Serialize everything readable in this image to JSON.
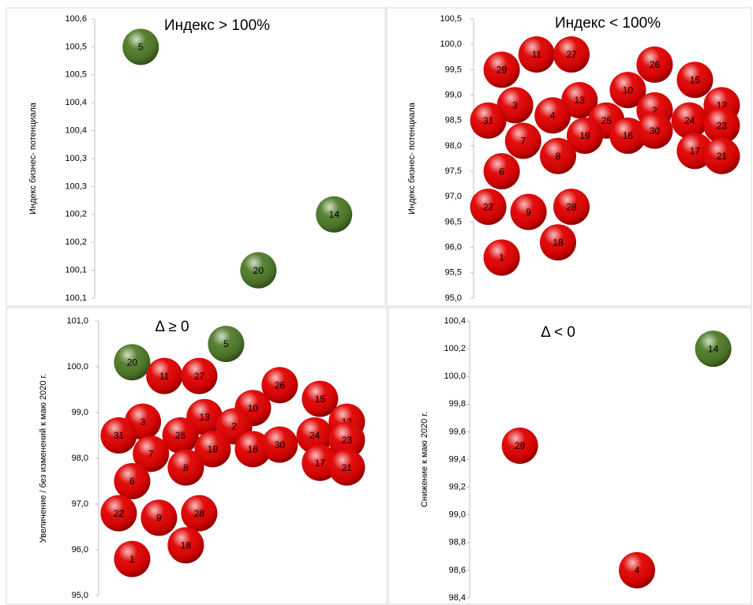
{
  "chart_data": [
    {
      "type": "scatter",
      "title": "Индекс > 100%",
      "y_label": "Индекс бизнес- потенциала",
      "xlim": [
        0,
        100
      ],
      "ylim": [
        100.05,
        100.55
      ],
      "yticks": [
        {
          "value": 100.05,
          "label": "100,1"
        },
        {
          "value": 100.1,
          "label": "100,1"
        },
        {
          "value": 100.15,
          "label": "100,2"
        },
        {
          "value": 100.2,
          "label": "100,2"
        },
        {
          "value": 100.25,
          "label": "100,3"
        },
        {
          "value": 100.3,
          "label": "100,3"
        },
        {
          "value": 100.35,
          "label": "100,4"
        },
        {
          "value": 100.4,
          "label": "100,4"
        },
        {
          "value": 100.45,
          "label": "100,5"
        },
        {
          "value": 100.5,
          "label": "100,5"
        },
        {
          "value": 100.55,
          "label": "100,6"
        }
      ],
      "series": [
        {
          "color": "#4f7a28",
          "labels": [
            "5",
            "20",
            "14"
          ],
          "x": [
            15,
            57,
            84
          ],
          "values": [
            100.5,
            100.1,
            100.2
          ]
        }
      ]
    },
    {
      "type": "scatter",
      "title": "Индекс < 100%",
      "y_label": "Индекс бизнес- потенциала",
      "xlim": [
        0,
        100
      ],
      "ylim": [
        95,
        100.5
      ],
      "yticks": [
        {
          "value": 95,
          "label": "95,0"
        },
        {
          "value": 95.5,
          "label": "95,5"
        },
        {
          "value": 96,
          "label": "96,0"
        },
        {
          "value": 96.5,
          "label": "96,5"
        },
        {
          "value": 97,
          "label": "97,0"
        },
        {
          "value": 97.5,
          "label": "97,5"
        },
        {
          "value": 98,
          "label": "98,0"
        },
        {
          "value": 98.5,
          "label": "98,5"
        },
        {
          "value": 99,
          "label": "99,0"
        },
        {
          "value": 99.5,
          "label": "99,5"
        },
        {
          "value": 100,
          "label": "100,0"
        },
        {
          "value": 100.5,
          "label": "100,5"
        }
      ],
      "series": [
        {
          "color": "#e00000",
          "labels": [
            "29",
            "11",
            "27",
            "26",
            "15",
            "10",
            "3",
            "13",
            "2",
            "12",
            "31",
            "4",
            "25",
            "24",
            "23",
            "19",
            "16",
            "30",
            "7",
            "17",
            "8",
            "21",
            "6",
            "22",
            "9",
            "28",
            "18",
            "1"
          ],
          "x": [
            9,
            22,
            35,
            66,
            81,
            56,
            14,
            38,
            66,
            91,
            4,
            28,
            48,
            79,
            91,
            40,
            56,
            66,
            17,
            81,
            30,
            91,
            9,
            4,
            19,
            35,
            30,
            9
          ],
          "values": [
            99.5,
            99.8,
            99.8,
            99.6,
            99.3,
            99.1,
            98.8,
            98.9,
            98.7,
            98.8,
            98.5,
            98.6,
            98.5,
            98.5,
            98.4,
            98.2,
            98.2,
            98.3,
            98.1,
            97.9,
            97.8,
            97.8,
            97.5,
            96.8,
            96.7,
            96.8,
            96.1,
            95.8
          ]
        }
      ]
    },
    {
      "type": "scatter",
      "title": "Δ ≥ 0",
      "y_label": "Увеличение / без изменений к маю 2020 г.",
      "xlim": [
        0,
        100
      ],
      "ylim": [
        95,
        101
      ],
      "yticks": [
        {
          "value": 95,
          "label": "95,0"
        },
        {
          "value": 96,
          "label": "96,0"
        },
        {
          "value": 97,
          "label": "97,0"
        },
        {
          "value": 98,
          "label": "98,0"
        },
        {
          "value": 99,
          "label": "99,0"
        },
        {
          "value": 100,
          "label": "100,0"
        },
        {
          "value": 101,
          "label": "101,0"
        }
      ],
      "series": [
        {
          "color": "#4f7a28",
          "labels": [
            "20",
            "5"
          ],
          "x": [
            11,
            46
          ],
          "values": [
            100.1,
            100.5
          ]
        },
        {
          "color": "#e00000",
          "labels": [
            "11",
            "27",
            "26",
            "15",
            "10",
            "3",
            "13",
            "2",
            "12",
            "31",
            "25",
            "24",
            "23",
            "19",
            "16",
            "30",
            "7",
            "17",
            "8",
            "21",
            "6",
            "22",
            "9",
            "28",
            "18",
            "1"
          ],
          "x": [
            23,
            36,
            66,
            81,
            56,
            15,
            38,
            49,
            91,
            6,
            29,
            79,
            91,
            41,
            56,
            66,
            18,
            81,
            31,
            91,
            11,
            6,
            21,
            36,
            31,
            11
          ],
          "values": [
            99.8,
            99.8,
            99.6,
            99.3,
            99.1,
            98.8,
            98.9,
            98.7,
            98.8,
            98.5,
            98.5,
            98.5,
            98.4,
            98.2,
            98.2,
            98.3,
            98.1,
            97.9,
            97.8,
            97.8,
            97.5,
            96.8,
            96.7,
            96.8,
            96.1,
            95.8
          ]
        }
      ]
    },
    {
      "type": "scatter",
      "title": "Δ < 0",
      "y_label": "Снижение к маю 2020 г.",
      "xlim": [
        0,
        100
      ],
      "ylim": [
        98.4,
        100.4
      ],
      "yticks": [
        {
          "value": 98.4,
          "label": "98,4"
        },
        {
          "value": 98.6,
          "label": "98,6"
        },
        {
          "value": 98.8,
          "label": "98,8"
        },
        {
          "value": 99,
          "label": "99,0"
        },
        {
          "value": 99.2,
          "label": "99,2"
        },
        {
          "value": 99.4,
          "label": "99,4"
        },
        {
          "value": 99.6,
          "label": "99,6"
        },
        {
          "value": 99.8,
          "label": "99,8"
        },
        {
          "value": 100,
          "label": "100,0"
        },
        {
          "value": 100.2,
          "label": "100,2"
        },
        {
          "value": 100.4,
          "label": "100,4"
        }
      ],
      "series": [
        {
          "color": "#4f7a28",
          "labels": [
            "14"
          ],
          "x": [
            88
          ],
          "values": [
            100.2
          ]
        },
        {
          "color": "#e00000",
          "labels": [
            "29",
            "4"
          ],
          "x": [
            17,
            60
          ],
          "values": [
            99.5,
            98.6
          ]
        }
      ]
    }
  ]
}
